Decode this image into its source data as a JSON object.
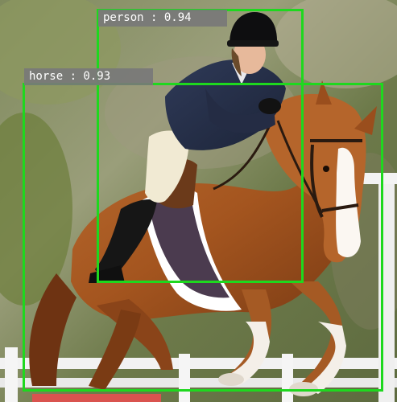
{
  "image": {
    "width": 493,
    "height": 500
  },
  "detections": [
    {
      "label": "person",
      "score": "0.94",
      "display": "person : 0.94",
      "box_color": "#1ed81e"
    },
    {
      "label": "horse",
      "score": "0.93",
      "display": "horse : 0.93",
      "box_color": "#1ed81e"
    }
  ],
  "colors": {
    "box": "#1ed81e",
    "label_bg": "#787878",
    "label_text": "#ffffff"
  }
}
